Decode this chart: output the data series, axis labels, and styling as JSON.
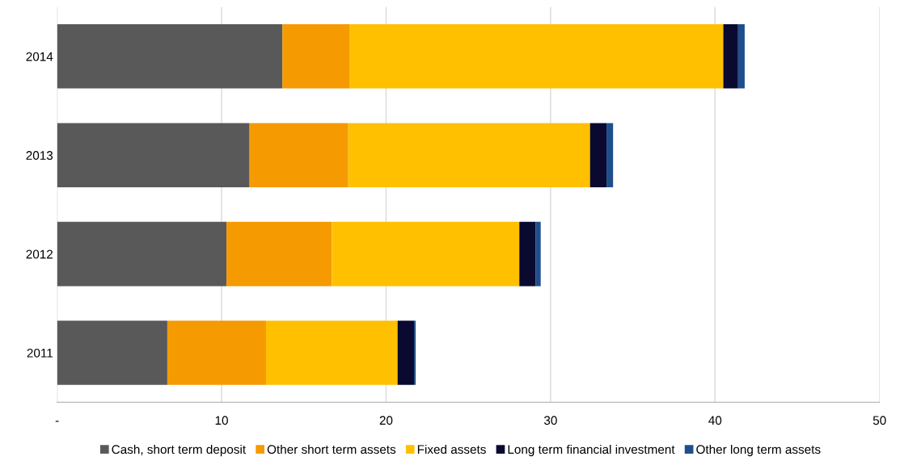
{
  "chart_data": {
    "type": "bar",
    "orientation": "horizontal",
    "stacked": true,
    "categories": [
      "2014",
      "2013",
      "2012",
      "2011"
    ],
    "series": [
      {
        "name": "Cash, short term deposit",
        "color": "#595959",
        "values": [
          13.7,
          11.7,
          10.3,
          6.7
        ]
      },
      {
        "name": "Other short term assets",
        "color": "#f59a00",
        "values": [
          4.1,
          6.0,
          6.4,
          6.0
        ]
      },
      {
        "name": "Fixed assets",
        "color": "#ffc000",
        "values": [
          22.7,
          14.7,
          11.4,
          8.0
        ]
      },
      {
        "name": "Long term financial investment",
        "color": "#0a0a30",
        "values": [
          0.9,
          1.0,
          1.0,
          1.0
        ]
      },
      {
        "name": "Other long term assets",
        "color": "#1f4e8c",
        "values": [
          0.4,
          0.4,
          0.3,
          0.1
        ]
      }
    ],
    "xlim": [
      0,
      50
    ],
    "xticks": [
      {
        "value": 0,
        "label": "-"
      },
      10,
      20,
      30,
      40,
      50
    ],
    "grid": "x",
    "legend": "bottom"
  }
}
